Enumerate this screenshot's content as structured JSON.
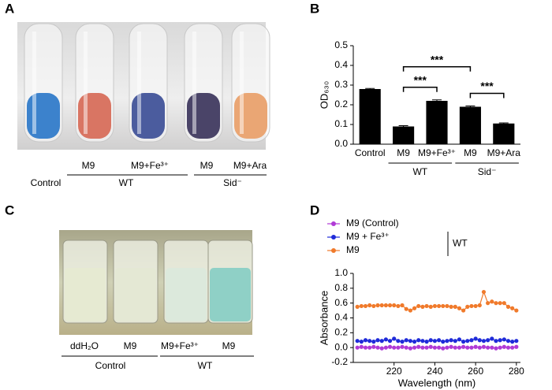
{
  "panel_labels": [
    "A",
    "B",
    "C",
    "D"
  ],
  "panel_a": {
    "top_labels": [
      "M9",
      "M9+Fe³⁺",
      "M9",
      "M9+Ara"
    ],
    "group_labels": [
      "Control",
      "WT",
      "Sid⁻"
    ]
  },
  "panel_c": {
    "top_labels": [
      "ddH₂O",
      "M9",
      "M9+Fe³⁺",
      "M9"
    ],
    "group_labels": [
      "Control",
      "WT"
    ]
  },
  "chart_data": [
    {
      "type": "bar",
      "ylabel": "OD₆₃₀",
      "categories": [
        "Control",
        "M9",
        "M9+Fe³⁺",
        "M9",
        "M9+Ara"
      ],
      "values": [
        0.28,
        0.09,
        0.22,
        0.19,
        0.105
      ],
      "errors": [
        0.003,
        0.004,
        0.005,
        0.004,
        0.003
      ],
      "color": "#000000",
      "ylim": [
        0,
        0.5
      ],
      "yticks": [
        {
          "value": 0,
          "label": "0.0"
        },
        0.1,
        0.2,
        0.3,
        0.4,
        0.5
      ],
      "groups": [
        {
          "label": "WT",
          "categories": [
            1,
            2
          ]
        },
        {
          "label": "Sid⁻",
          "categories": [
            3,
            4
          ]
        }
      ],
      "significance": [
        {
          "from": 1,
          "to": 3,
          "label": "***"
        },
        {
          "from": 1,
          "to": 2,
          "label": "***"
        },
        {
          "from": 3,
          "to": 4,
          "label": "***"
        }
      ]
    },
    {
      "type": "line",
      "xlabel": "Wavelength (nm)",
      "ylabel": "Absorbance",
      "x": [
        202,
        204,
        206,
        208,
        210,
        212,
        214,
        216,
        218,
        220,
        222,
        224,
        226,
        228,
        230,
        232,
        234,
        236,
        238,
        240,
        242,
        244,
        246,
        248,
        250,
        252,
        254,
        256,
        258,
        260,
        262,
        264,
        266,
        268,
        270,
        272,
        274,
        276,
        278,
        280
      ],
      "xlim": [
        200,
        282
      ],
      "xticks": [
        220,
        240,
        260,
        280
      ],
      "ylim": [
        -0.2,
        1.0
      ],
      "yticks": [
        -0.2,
        {
          "value": 0,
          "label": "0.0"
        },
        0.2,
        0.4,
        0.6,
        0.8,
        {
          "value": 1.0,
          "label": "1.0"
        }
      ],
      "legend_position": "top-left",
      "legend_group": {
        "label": "WT",
        "series": [
          1,
          2
        ]
      },
      "series": [
        {
          "name": "M9 (Control)",
          "color": "#b03ad6",
          "values": [
            0.0,
            0.01,
            0.0,
            0.0,
            0.01,
            0.0,
            -0.01,
            0.0,
            0.01,
            0.0,
            0.0,
            0.01,
            0.0,
            -0.01,
            0.0,
            0.01,
            0.0,
            0.0,
            0.01,
            0.0,
            0.0,
            -0.01,
            0.0,
            0.01,
            0.0,
            0.0,
            0.01,
            0.0,
            0.0,
            0.01,
            0.0,
            0.01,
            0.0,
            0.0,
            -0.01,
            0.0,
            0.01,
            0.0,
            0.0,
            0.01
          ]
        },
        {
          "name": "M9  + Fe³⁺",
          "color": "#1f2bd9",
          "values": [
            0.09,
            0.08,
            0.1,
            0.09,
            0.08,
            0.1,
            0.09,
            0.11,
            0.09,
            0.12,
            0.09,
            0.08,
            0.1,
            0.09,
            0.08,
            0.1,
            0.09,
            0.08,
            0.1,
            0.09,
            0.1,
            0.08,
            0.09,
            0.1,
            0.09,
            0.11,
            0.08,
            0.09,
            0.1,
            0.12,
            0.1,
            0.09,
            0.1,
            0.12,
            0.09,
            0.1,
            0.11,
            0.09,
            0.08,
            0.09
          ]
        },
        {
          "name": "M9",
          "color": "#f07a2b",
          "values": [
            0.55,
            0.56,
            0.56,
            0.57,
            0.56,
            0.57,
            0.57,
            0.57,
            0.57,
            0.57,
            0.56,
            0.57,
            0.52,
            0.5,
            0.53,
            0.56,
            0.55,
            0.56,
            0.55,
            0.56,
            0.56,
            0.56,
            0.56,
            0.55,
            0.55,
            0.53,
            0.5,
            0.55,
            0.56,
            0.56,
            0.57,
            0.75,
            0.6,
            0.62,
            0.6,
            0.6,
            0.6,
            0.55,
            0.53,
            0.5
          ]
        }
      ]
    }
  ]
}
